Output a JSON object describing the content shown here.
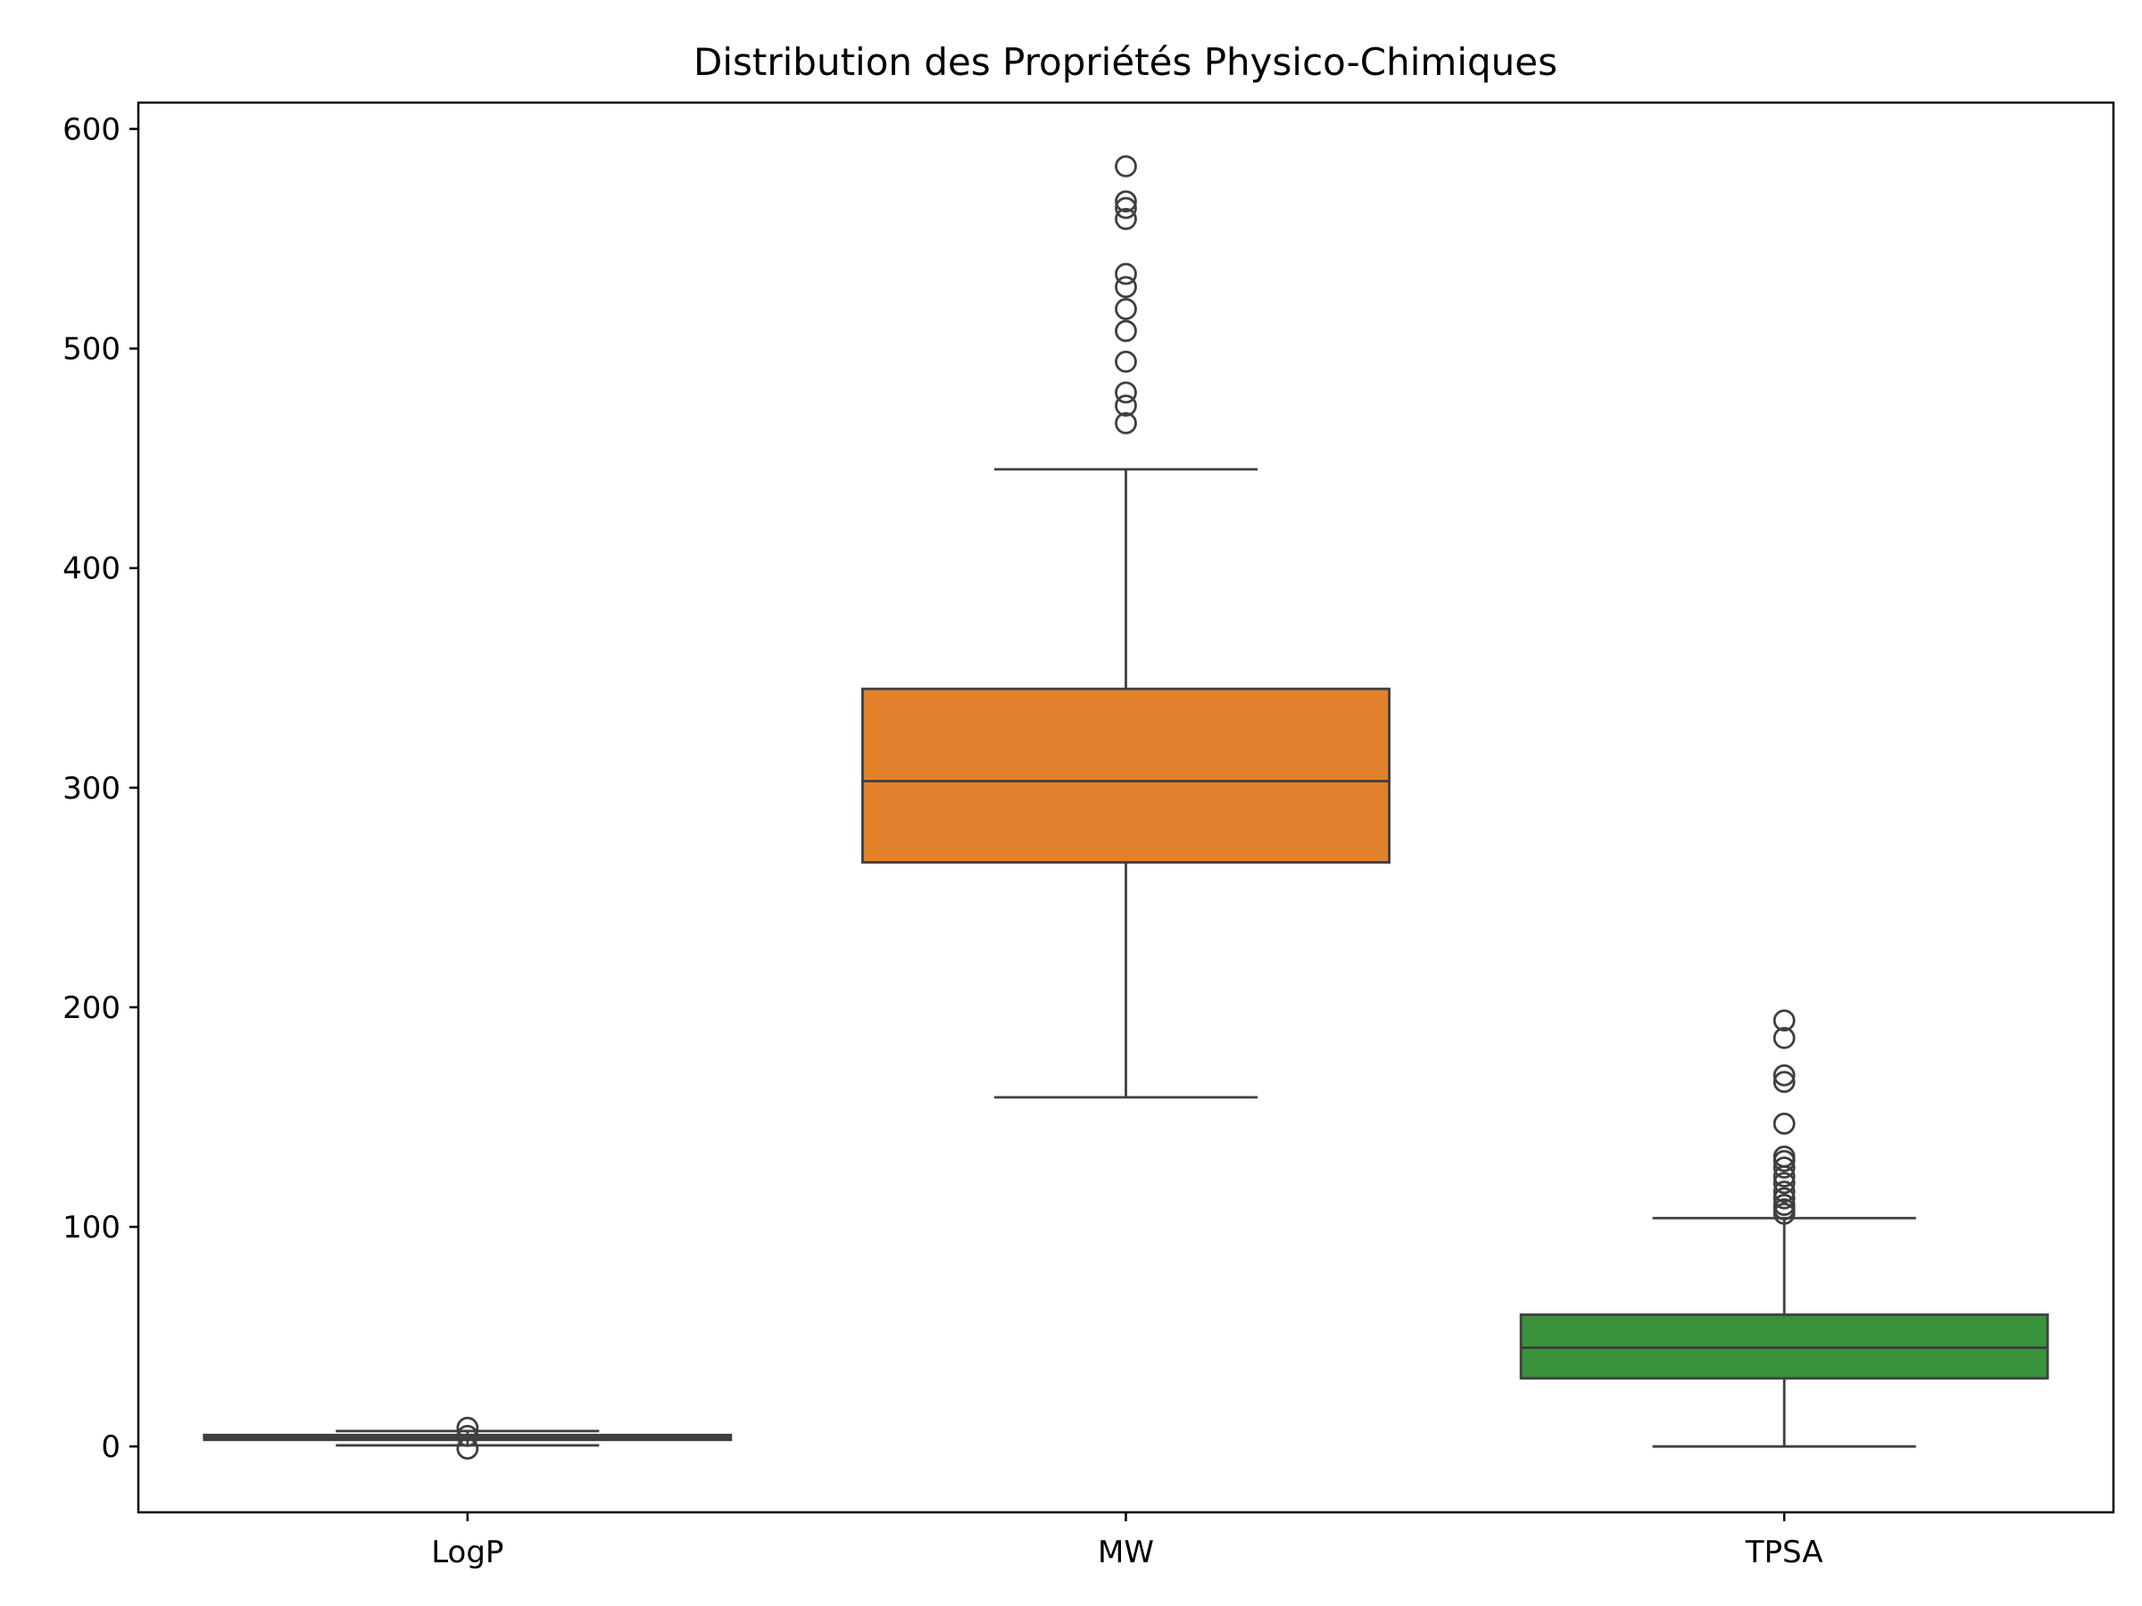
{
  "chart_data": {
    "type": "box",
    "title": "Distribution des Propriétés Physico-Chimiques",
    "xlabel": "",
    "ylabel": "",
    "ylim": [
      -30,
      612
    ],
    "yticks": [
      0,
      100,
      200,
      300,
      400,
      500,
      600
    ],
    "ytick_labels": [
      "0",
      "100",
      "200",
      "300",
      "400",
      "500",
      "600"
    ],
    "grid": false,
    "legend": "none",
    "categories": [
      "LogP",
      "MW",
      "TPSA"
    ],
    "boxes": [
      {
        "category": "LogP",
        "color": "#1f77b4",
        "whisker_low": 0.5,
        "q1": 3.0,
        "median": 4.0,
        "q3": 5.2,
        "whisker_high": 7.0,
        "outliers": [
          -1.0,
          4.8,
          8.5
        ]
      },
      {
        "category": "MW",
        "color": "#e1812c",
        "whisker_low": 159,
        "q1": 266,
        "median": 303,
        "q3": 345,
        "whisker_high": 445,
        "outliers": [
          466,
          474,
          480,
          494,
          508,
          518,
          528,
          534,
          559,
          564,
          567,
          583
        ]
      },
      {
        "category": "TPSA",
        "color": "#3a923a",
        "whisker_low": 0,
        "q1": 31,
        "median": 45,
        "q3": 60,
        "whisker_high": 104,
        "outliers": [
          106,
          108,
          110,
          113,
          116,
          120,
          123,
          127,
          130,
          132,
          147,
          166,
          169,
          186,
          194
        ]
      }
    ]
  }
}
